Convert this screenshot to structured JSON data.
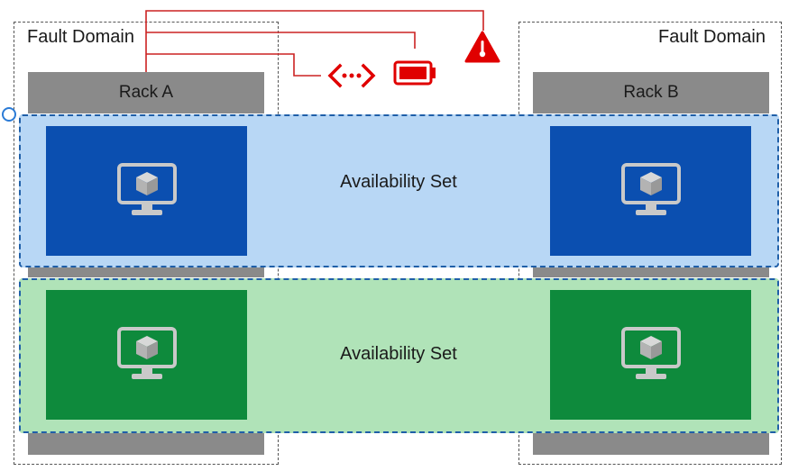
{
  "colors": {
    "fault_domain_border": "#555555",
    "rack": "#8a8a8a",
    "avset_blue_bg": "#b8d7f5",
    "avset_green_bg": "#b0e3b8",
    "vm_blue": "#0b4fb0",
    "vm_green": "#0e8a3c",
    "alert_red": "#e00000",
    "avset_border": "#1f5fa8"
  },
  "fault_domains": [
    {
      "label": "Fault Domain"
    },
    {
      "label": "Fault Domain"
    }
  ],
  "racks": [
    {
      "label": "Rack A"
    },
    {
      "label": "Rack B"
    }
  ],
  "availability_sets": [
    {
      "label": "Availability Set",
      "color": "blue"
    },
    {
      "label": "Availability Set",
      "color": "green"
    }
  ],
  "icons": {
    "vm": "virtual-machine-icon",
    "network": "network-connection-icon",
    "power": "battery-icon",
    "warning": "warning-temperature-icon"
  }
}
